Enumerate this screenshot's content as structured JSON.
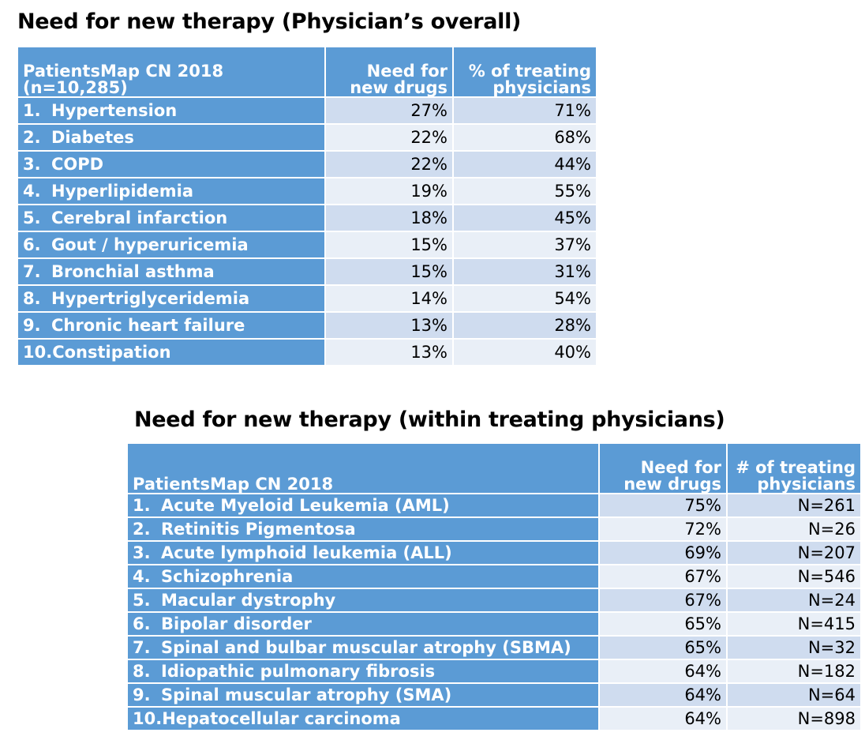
{
  "table1": {
    "title": "Need for new therapy (Physician’s overall)",
    "header": {
      "col1_line1": "PatientsMap CN 2018",
      "col1_line2": "(n=10,285)",
      "col2_line1": "Need for",
      "col2_line2": "new drugs",
      "col3_line1": "% of treating",
      "col3_line2": "physicians"
    },
    "rows": [
      {
        "rank": "1.",
        "name": "Hypertension",
        "need": "27%",
        "pct": "71%"
      },
      {
        "rank": "2.",
        "name": "Diabetes",
        "need": "22%",
        "pct": "68%"
      },
      {
        "rank": "3.",
        "name": "COPD",
        "need": "22%",
        "pct": "44%"
      },
      {
        "rank": "4.",
        "name": "Hyperlipidemia",
        "need": "19%",
        "pct": "55%"
      },
      {
        "rank": "5.",
        "name": "Cerebral infarction",
        "need": "18%",
        "pct": "45%"
      },
      {
        "rank": "6.",
        "name": "Gout / hyperuricemia",
        "need": "15%",
        "pct": "37%"
      },
      {
        "rank": "7.",
        "name": "Bronchial asthma",
        "need": "15%",
        "pct": "31%"
      },
      {
        "rank": "8.",
        "name": "Hypertriglyceridemia",
        "need": "14%",
        "pct": "54%"
      },
      {
        "rank": "9.",
        "name": "Chronic heart failure",
        "need": "13%",
        "pct": "28%"
      },
      {
        "rank": "10.",
        "name": "Constipation",
        "need": "13%",
        "pct": "40%"
      }
    ]
  },
  "table2": {
    "title": "Need for new therapy (within treating physicians)",
    "header": {
      "col1_line1": "",
      "col1_line2": "PatientsMap CN 2018",
      "col2_line1": "Need for",
      "col2_line2": "new drugs",
      "col3_line1": "# of treating",
      "col3_line2": "physicians"
    },
    "rows": [
      {
        "rank": "1.",
        "name": "Acute Myeloid Leukemia (AML)",
        "need": "75%",
        "n": "N=261"
      },
      {
        "rank": "2.",
        "name": "Retinitis Pigmentosa",
        "need": "72%",
        "n": "N=26"
      },
      {
        "rank": "3.",
        "name": "Acute lymphoid leukemia (ALL)",
        "need": "69%",
        "n": "N=207"
      },
      {
        "rank": "4.",
        "name": "Schizophrenia",
        "need": "67%",
        "n": "N=546"
      },
      {
        "rank": "5.",
        "name": "Macular dystrophy",
        "need": "67%",
        "n": "N=24"
      },
      {
        "rank": "6.",
        "name": "Bipolar disorder",
        "need": "65%",
        "n": "N=415"
      },
      {
        "rank": "7.",
        "name": "Spinal and bulbar muscular atrophy (SBMA)",
        "need": "65%",
        "n": "N=32"
      },
      {
        "rank": "8.",
        "name": "Idiopathic pulmonary fibrosis",
        "need": "64%",
        "n": "N=182"
      },
      {
        "rank": "9.",
        "name": "Spinal muscular atrophy (SMA)",
        "need": "64%",
        "n": "N=64"
      },
      {
        "rank": "10.",
        "name": "Hepatocellular carcinoma",
        "need": "64%",
        "n": "N=898"
      }
    ]
  }
}
